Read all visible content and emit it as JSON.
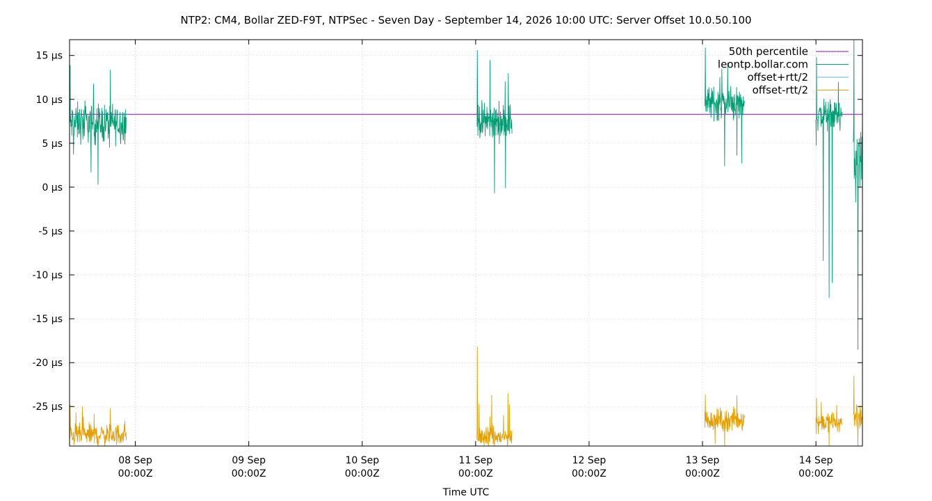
{
  "chart_data": {
    "type": "line",
    "title": "NTP2: CM4, Bollar ZED-F9T, NTPSec - Seven Day - September 14, 2026 10:00 UTC: Server Offset 10.0.50.100",
    "xlabel": "Time UTC",
    "ylabel": "",
    "ylim": [
      -29.5,
      16.8
    ],
    "xlim": [
      -0.58,
      6.41
    ],
    "grid": true,
    "legend_position": "top-right",
    "y_ticks": [
      {
        "value": 15,
        "label": "15 µs"
      },
      {
        "value": 10,
        "label": "10 µs"
      },
      {
        "value": 5,
        "label": "5 µs"
      },
      {
        "value": 0,
        "label": "0 µs"
      },
      {
        "value": -5,
        "label": "-5 µs"
      },
      {
        "value": -10,
        "label": "-10 µs"
      },
      {
        "value": -15,
        "label": "-15 µs"
      },
      {
        "value": -20,
        "label": "-20 µs"
      },
      {
        "value": -25,
        "label": "-25 µs"
      }
    ],
    "x_ticks": [
      {
        "value": 0,
        "day": "08 Sep",
        "time": "00:00Z"
      },
      {
        "value": 1,
        "day": "09 Sep",
        "time": "00:00Z"
      },
      {
        "value": 2,
        "day": "10 Sep",
        "time": "00:00Z"
      },
      {
        "value": 3,
        "day": "11 Sep",
        "time": "00:00Z"
      },
      {
        "value": 4,
        "day": "12 Sep",
        "time": "00:00Z"
      },
      {
        "value": 5,
        "day": "13 Sep",
        "time": "00:00Z"
      },
      {
        "value": 6,
        "day": "14 Sep",
        "time": "00:00Z"
      }
    ],
    "series": [
      {
        "name": "50th percentile",
        "color": "#9400d3",
        "type": "constant",
        "value": 8.3
      },
      {
        "name": "leontp.bollar.com",
        "color": "#009e73",
        "type": "noise",
        "segments": [
          {
            "x0": -0.58,
            "x1": -0.08,
            "min": 0.3,
            "max": 13.9,
            "center": 7.3,
            "spread": 3.3
          },
          {
            "x0": 3.01,
            "x1": 3.32,
            "min": -0.7,
            "max": 15.6,
            "center": 7.5,
            "spread": 3.0
          },
          {
            "x0": 5.02,
            "x1": 5.37,
            "min": 2.4,
            "max": 15.9,
            "center": 9.6,
            "spread": 2.8
          },
          {
            "x0": 6.0,
            "x1": 6.23,
            "min": -12.6,
            "max": 14.8,
            "center": 8.2,
            "spread": 2.6
          },
          {
            "x0": 6.33,
            "x1": 6.41,
            "min": -18.5,
            "max": 16.8,
            "center": 3.0,
            "spread": 7.5
          }
        ]
      },
      {
        "name": "offset+rtt/2",
        "color": "#56b4e9",
        "type": "noise",
        "segments": []
      },
      {
        "name": "offset-rtt/2",
        "color": "#e69f00",
        "type": "noise",
        "segments": [
          {
            "x0": -0.58,
            "x1": -0.08,
            "min": -29.5,
            "max": -24.8,
            "center": -28.2,
            "spread": 1.8
          },
          {
            "x0": 3.01,
            "x1": 3.32,
            "min": -29.5,
            "max": -18.2,
            "center": -28.5,
            "spread": 1.6
          },
          {
            "x0": 5.02,
            "x1": 5.37,
            "min": -29.5,
            "max": -23.6,
            "center": -26.5,
            "spread": 1.8
          },
          {
            "x0": 6.0,
            "x1": 6.23,
            "min": -29.5,
            "max": -24.0,
            "center": -26.8,
            "spread": 1.6
          },
          {
            "x0": 6.33,
            "x1": 6.41,
            "min": -29.5,
            "max": -21.5,
            "center": -26.0,
            "spread": 2.5
          }
        ]
      }
    ]
  }
}
